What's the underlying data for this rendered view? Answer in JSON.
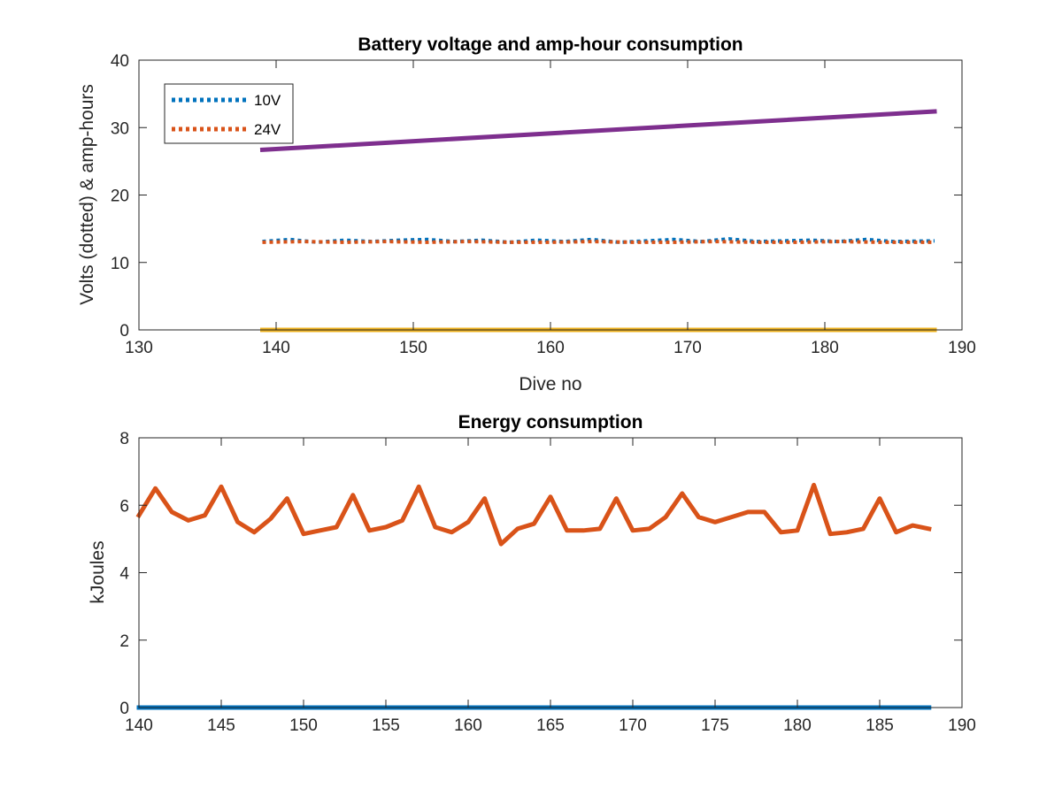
{
  "chart_data": [
    {
      "type": "line",
      "title": "Battery voltage and amp-hour consumption",
      "xlabel": "Dive no",
      "ylabel": "Volts (dotted) & amp-hours",
      "xlim": [
        130,
        190
      ],
      "ylim": [
        0,
        40
      ],
      "xticks": [
        130,
        140,
        150,
        160,
        170,
        180,
        190
      ],
      "yticks": [
        0,
        10,
        20,
        30,
        40
      ],
      "grid": false,
      "legend_position": "top-left",
      "series": [
        {
          "name": "10V",
          "style": "dotted",
          "color": "#0072BD",
          "x": [
            139,
            141,
            143,
            145,
            147,
            149,
            151,
            153,
            155,
            157,
            159,
            161,
            163,
            165,
            167,
            169,
            171,
            173,
            175,
            177,
            179,
            181,
            183,
            185,
            188
          ],
          "y": [
            13.1,
            13.4,
            13.0,
            13.3,
            13.1,
            13.3,
            13.4,
            13.1,
            13.3,
            13.0,
            13.3,
            13.1,
            13.4,
            13.0,
            13.2,
            13.4,
            13.1,
            13.5,
            13.1,
            13.2,
            13.3,
            13.1,
            13.4,
            13.1,
            13.2
          ]
        },
        {
          "name": "24V",
          "style": "dotted",
          "color": "#D95319",
          "x": [
            139,
            142,
            145,
            148,
            151,
            154,
            157,
            160,
            163,
            166,
            169,
            172,
            175,
            178,
            181,
            184,
            188
          ],
          "y": [
            13.0,
            13.1,
            13.0,
            13.1,
            13.0,
            13.1,
            13.0,
            13.0,
            13.1,
            13.0,
            13.0,
            13.1,
            13.0,
            13.0,
            13.1,
            13.0,
            13.0
          ]
        },
        {
          "style": "solid",
          "color": "#EDB120",
          "x": [
            139,
            188
          ],
          "y": [
            0,
            0
          ]
        },
        {
          "style": "solid",
          "color": "#7E2F8E",
          "x": [
            139,
            188
          ],
          "y": [
            26.7,
            32.4
          ]
        }
      ]
    },
    {
      "type": "line",
      "title": "Energy consumption",
      "xlabel": "",
      "ylabel": "kJoules",
      "xlim": [
        140,
        190
      ],
      "ylim": [
        0,
        8
      ],
      "xticks": [
        140,
        145,
        150,
        155,
        160,
        165,
        170,
        175,
        180,
        185,
        190
      ],
      "yticks": [
        0,
        2,
        4,
        6,
        8
      ],
      "grid": false,
      "series": [
        {
          "style": "solid",
          "color": "#0072BD",
          "x": [
            140,
            188
          ],
          "y": [
            0,
            0
          ]
        },
        {
          "style": "solid",
          "color": "#D95319",
          "x": [
            140,
            141,
            142,
            143,
            144,
            145,
            146,
            147,
            148,
            149,
            150,
            151,
            152,
            153,
            154,
            155,
            156,
            157,
            158,
            159,
            160,
            161,
            162,
            163,
            164,
            165,
            166,
            167,
            168,
            169,
            170,
            171,
            172,
            173,
            174,
            175,
            176,
            177,
            178,
            179,
            180,
            181,
            182,
            183,
            184,
            185,
            186,
            187,
            188
          ],
          "y": [
            5.7,
            6.5,
            5.8,
            5.55,
            5.7,
            6.55,
            5.5,
            5.2,
            5.6,
            6.2,
            5.15,
            5.25,
            5.35,
            6.3,
            5.25,
            5.35,
            5.55,
            6.55,
            5.35,
            5.2,
            5.5,
            6.2,
            4.85,
            5.3,
            5.45,
            6.25,
            5.25,
            5.25,
            5.3,
            6.2,
            5.25,
            5.3,
            5.65,
            6.35,
            5.65,
            5.5,
            5.65,
            5.8,
            5.8,
            5.2,
            5.25,
            6.6,
            5.15,
            5.2,
            5.3,
            6.2,
            5.2,
            5.4,
            5.3
          ]
        }
      ]
    }
  ]
}
